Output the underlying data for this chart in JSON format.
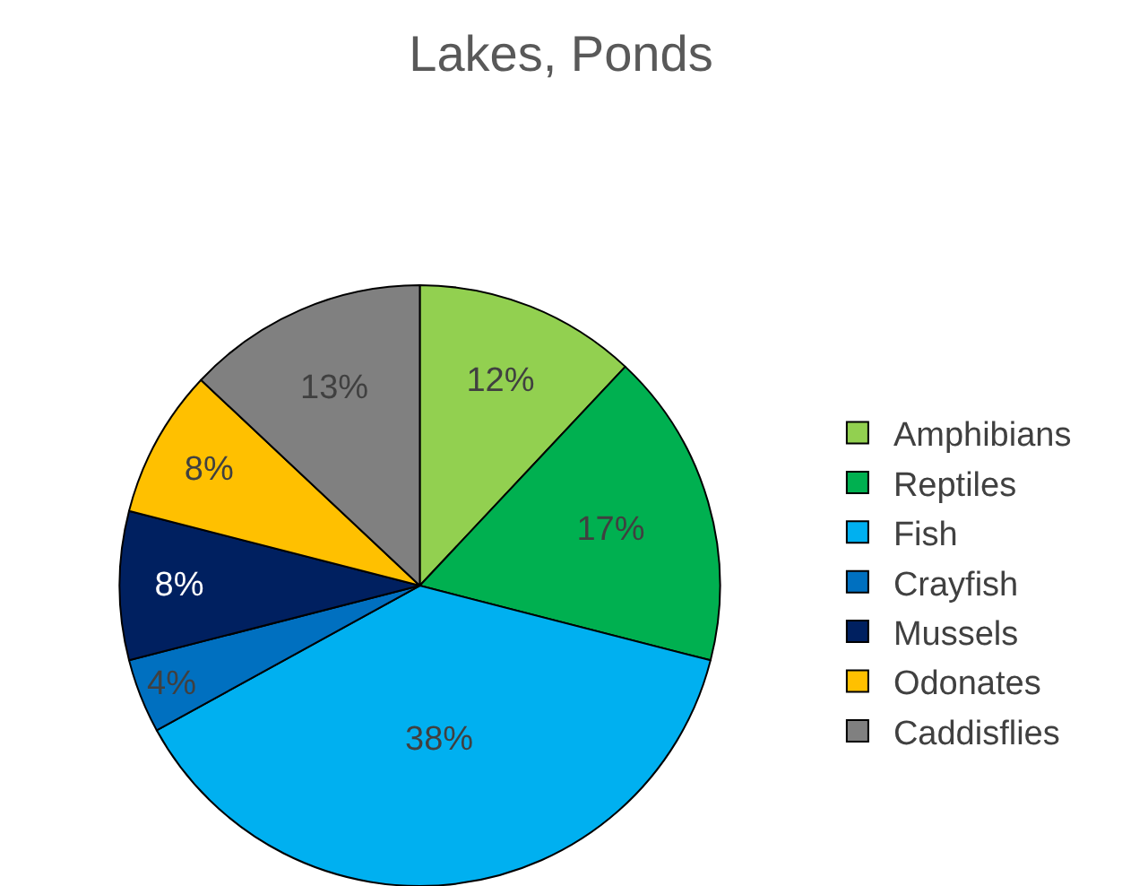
{
  "chart_data": {
    "type": "pie",
    "title": "Lakes, Ponds",
    "categories": [
      "Amphibians",
      "Reptiles",
      "Fish",
      "Crayfish",
      "Mussels",
      "Odonates",
      "Caddisflies"
    ],
    "values": [
      12,
      17,
      38,
      4,
      8,
      8,
      13
    ],
    "value_labels": [
      "12%",
      "17%",
      "38%",
      "4%",
      "8%",
      "8%",
      "13%"
    ],
    "colors": [
      "#92d050",
      "#00b050",
      "#00b0f0",
      "#0070c0",
      "#002060",
      "#ffc000",
      "#808080"
    ],
    "legend": "right"
  }
}
